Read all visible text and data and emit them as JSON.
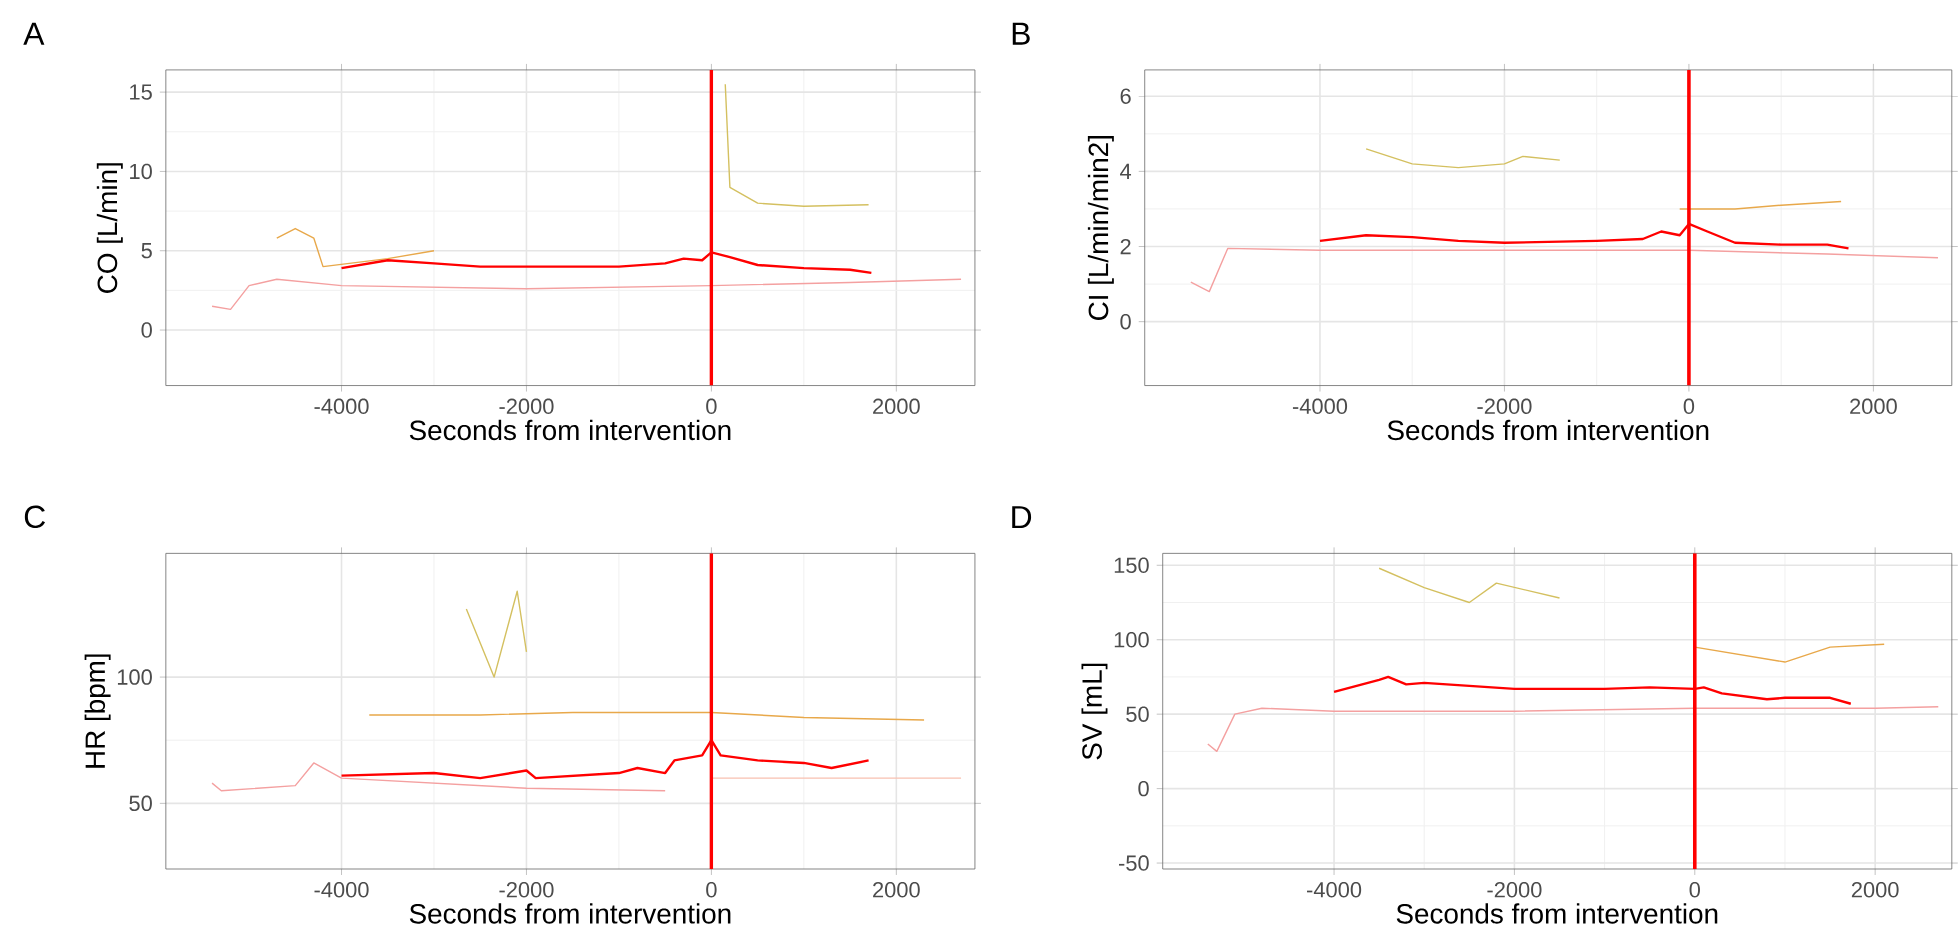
{
  "chart_data": [
    {
      "type": "line",
      "title": "A",
      "xlabel": "Seconds from intervention",
      "ylabel": "CO [L/min]",
      "xlim": [
        -5900,
        2850
      ],
      "ylim": [
        -3.5,
        16.4
      ],
      "xticks": [
        -4000,
        -2000,
        0,
        2000
      ],
      "yticks": [
        0,
        5,
        10,
        15
      ],
      "grid": true,
      "series": [
        {
          "color": "#f4a0a0",
          "x": [
            -5400,
            -5200,
            -5000,
            -4700,
            -4000,
            -2000,
            0,
            1500,
            2700
          ],
          "values": [
            1.5,
            1.3,
            2.8,
            3.2,
            2.8,
            2.6,
            2.8,
            3.0,
            3.2
          ]
        },
        {
          "color": "#e8a84a",
          "x": [
            -4700,
            -4500,
            -4300,
            -4200,
            -3500,
            -3000
          ],
          "values": [
            5.8,
            6.4,
            5.8,
            4.0,
            4.5,
            5.0
          ]
        },
        {
          "color": "#d4c060",
          "x": [
            150,
            200,
            500,
            1000,
            1700
          ],
          "values": [
            15.5,
            9,
            8,
            7.8,
            7.9
          ]
        },
        {
          "color": "#ff0000",
          "x": [
            -4000,
            -3500,
            -3000,
            -2500,
            -2000,
            -1500,
            -1000,
            -500,
            -300,
            -100,
            0,
            200,
            500,
            1000,
            1500,
            1730
          ],
          "values": [
            3.9,
            4.4,
            4.2,
            4.0,
            4.0,
            4.0,
            4.0,
            4.2,
            4.5,
            4.4,
            4.9,
            4.6,
            4.1,
            3.9,
            3.8,
            3.6
          ]
        }
      ],
      "ref_lines": [
        {
          "axis": "x",
          "value": 0,
          "color": "#ff0000"
        }
      ]
    },
    {
      "type": "line",
      "title": "B",
      "xlabel": "Seconds from intervention",
      "ylabel": "CI [L/min/min2]",
      "xlim": [
        -5900,
        2850
      ],
      "ylim": [
        -1.7,
        6.7
      ],
      "xticks": [
        -4000,
        -2000,
        0,
        2000
      ],
      "yticks": [
        0,
        2,
        4,
        6
      ],
      "grid": true,
      "series": [
        {
          "color": "#f4a0a0",
          "x": [
            -5400,
            -5200,
            -5000,
            -4000,
            -2500,
            0,
            1500,
            2700
          ],
          "values": [
            1.05,
            0.8,
            1.95,
            1.9,
            1.9,
            1.9,
            1.8,
            1.7
          ]
        },
        {
          "color": "#d4c060",
          "x": [
            -3500,
            -3000,
            -2500,
            -2000,
            -1800,
            -1400
          ],
          "values": [
            4.6,
            4.2,
            4.1,
            4.2,
            4.4,
            4.3
          ]
        },
        {
          "color": "#e8a84a",
          "x": [
            -100,
            500,
            1000,
            1650
          ],
          "values": [
            3.0,
            3.0,
            3.1,
            3.2
          ]
        },
        {
          "color": "#ff0000",
          "x": [
            -4000,
            -3500,
            -3000,
            -2500,
            -2000,
            -1000,
            -500,
            -300,
            -100,
            0,
            200,
            500,
            1000,
            1500,
            1730
          ],
          "values": [
            2.15,
            2.3,
            2.25,
            2.15,
            2.1,
            2.15,
            2.2,
            2.4,
            2.3,
            2.6,
            2.4,
            2.1,
            2.05,
            2.05,
            1.95
          ]
        }
      ],
      "ref_lines": [
        {
          "axis": "x",
          "value": 0,
          "color": "#ff0000"
        }
      ]
    },
    {
      "type": "line",
      "title": "C",
      "xlabel": "Seconds from intervention",
      "ylabel": "HR [bpm]",
      "xlim": [
        -5900,
        2850
      ],
      "ylim": [
        24,
        149
      ],
      "xticks": [
        -4000,
        -2000,
        0,
        2000
      ],
      "yticks": [
        50,
        100
      ],
      "grid": true,
      "series": [
        {
          "color": "#f4a0a0",
          "x": [
            -5400,
            -5300,
            -4500,
            -4300,
            -4000,
            -2000,
            -500
          ],
          "values": [
            58,
            55,
            57,
            66,
            60,
            56,
            55
          ]
        },
        {
          "color": "#f8c0b0",
          "x": [
            0,
            2700
          ],
          "values": [
            60,
            60
          ]
        },
        {
          "color": "#e8a84a",
          "x": [
            -3700,
            -2500,
            -1500,
            0,
            1000,
            2300
          ],
          "values": [
            85,
            85,
            86,
            86,
            84,
            83
          ]
        },
        {
          "color": "#d4c060",
          "x": [
            -2650,
            -2350,
            -2100,
            -2000
          ],
          "values": [
            127,
            100,
            134,
            110
          ]
        },
        {
          "color": "#ff0000",
          "x": [
            -4000,
            -3000,
            -2500,
            -2000,
            -1900,
            -1000,
            -800,
            -500,
            -400,
            -100,
            0,
            100,
            500,
            1000,
            1300,
            1700
          ],
          "values": [
            61,
            62,
            60,
            63,
            60,
            62,
            64,
            62,
            67,
            69,
            75,
            69,
            67,
            66,
            64,
            67
          ]
        }
      ],
      "ref_lines": [
        {
          "axis": "x",
          "value": 0,
          "color": "#ff0000"
        }
      ]
    },
    {
      "type": "line",
      "title": "D",
      "xlabel": "Seconds from intervention",
      "ylabel": "SV [mL]",
      "xlim": [
        -5900,
        2850
      ],
      "ylim": [
        -54,
        158
      ],
      "xticks": [
        -4000,
        -2000,
        0,
        2000
      ],
      "yticks": [
        -50,
        0,
        50,
        100,
        150
      ],
      "grid": true,
      "series": [
        {
          "color": "#f4a0a0",
          "x": [
            -5400,
            -5300,
            -5100,
            -4800,
            -4000,
            -2000,
            0,
            2000,
            2700
          ],
          "values": [
            30,
            25,
            50,
            54,
            52,
            52,
            54,
            54,
            55
          ]
        },
        {
          "color": "#d4c060",
          "x": [
            -3500,
            -3000,
            -2500,
            -2200,
            -1500
          ],
          "values": [
            148,
            135,
            125,
            138,
            128
          ]
        },
        {
          "color": "#e8a84a",
          "x": [
            0,
            1000,
            1500,
            2100
          ],
          "values": [
            95,
            85,
            95,
            97
          ]
        },
        {
          "color": "#ff0000",
          "x": [
            -4000,
            -3500,
            -3400,
            -3200,
            -3000,
            -2000,
            -1000,
            -500,
            0,
            100,
            300,
            800,
            1000,
            1500,
            1730
          ],
          "values": [
            65,
            73,
            75,
            70,
            71,
            67,
            67,
            68,
            67,
            68,
            64,
            60,
            61,
            61,
            57
          ]
        }
      ],
      "ref_lines": [
        {
          "axis": "x",
          "value": 0,
          "color": "#ff0000"
        }
      ]
    }
  ]
}
